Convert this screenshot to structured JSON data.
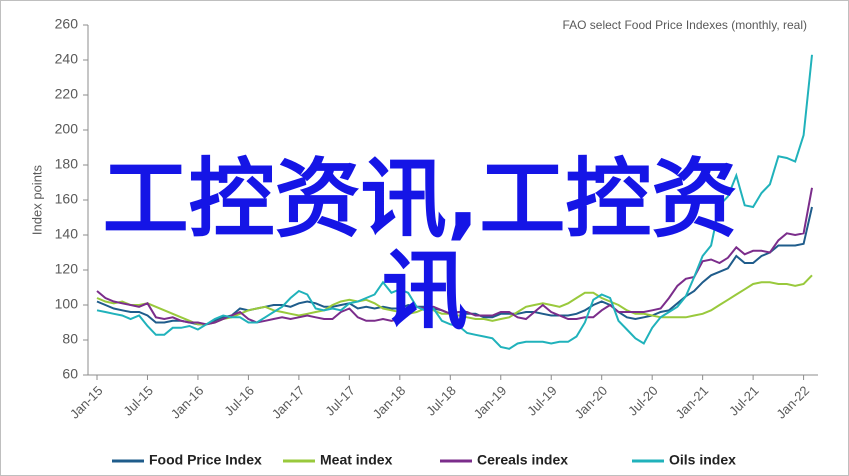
{
  "chart_data": {
    "type": "line",
    "subtitle": "FAO select Food Price Indexes (monthly, real)",
    "y_label": "Index points",
    "annotations": [
      "工控资讯,工控资",
      "讯"
    ],
    "categories": [
      "Jan-15",
      null,
      null,
      null,
      null,
      null,
      "Jul-15",
      null,
      null,
      null,
      null,
      null,
      "Jan-16",
      null,
      null,
      null,
      null,
      null,
      "Jul-16",
      null,
      null,
      null,
      null,
      null,
      "Jan-17",
      null,
      null,
      null,
      null,
      null,
      "Jul-17",
      null,
      null,
      null,
      null,
      null,
      "Jan-18",
      null,
      null,
      null,
      null,
      null,
      "Jul-18",
      null,
      null,
      null,
      null,
      null,
      "Jan-19",
      null,
      null,
      null,
      null,
      null,
      "Jul-19",
      null,
      null,
      null,
      null,
      null,
      "Jan-20",
      null,
      null,
      null,
      null,
      null,
      "Jul-20",
      null,
      null,
      null,
      null,
      null,
      "Jan-21",
      null,
      null,
      null,
      null,
      null,
      "Jul-21",
      null,
      null,
      null,
      null,
      null,
      "Jan-22",
      null
    ],
    "series": [
      {
        "name": "Food Price Index",
        "color": "#1f5c8b",
        "values": [
          102,
          100,
          98,
          97,
          96,
          96,
          94,
          90,
          90,
          91,
          91,
          90,
          89,
          89,
          91,
          93,
          94,
          98,
          97,
          98,
          99,
          100,
          100,
          99,
          101,
          102,
          101,
          99,
          99,
          100,
          101,
          98,
          99,
          98,
          99,
          98,
          98,
          100,
          99,
          99,
          98,
          97,
          95,
          96,
          95,
          95,
          93,
          93,
          95,
          95,
          95,
          96,
          96,
          95,
          94,
          94,
          94,
          95,
          97,
          100,
          102,
          100,
          96,
          93,
          92,
          93,
          94,
          96,
          97,
          101,
          105,
          108,
          113,
          117,
          119,
          121,
          128,
          124,
          124,
          128,
          130,
          134,
          134,
          134,
          135,
          156
        ]
      },
      {
        "name": "Meat index",
        "color": "#99c93c",
        "values": [
          104,
          102,
          101,
          102,
          100,
          100,
          101,
          99,
          97,
          95,
          93,
          91,
          89,
          89,
          90,
          92,
          93,
          95,
          97,
          98,
          99,
          97,
          96,
          95,
          94,
          95,
          96,
          97,
          100,
          102,
          103,
          102,
          103,
          101,
          98,
          97,
          96,
          95,
          96,
          98,
          97,
          95,
          95,
          94,
          93,
          92,
          92,
          91,
          92,
          93,
          96,
          99,
          100,
          101,
          100,
          99,
          101,
          104,
          107,
          107,
          104,
          102,
          100,
          97,
          95,
          95,
          94,
          93,
          93,
          93,
          93,
          94,
          95,
          97,
          100,
          103,
          106,
          109,
          112,
          113,
          113,
          112,
          112,
          111,
          112,
          117
        ]
      },
      {
        "name": "Cereals index",
        "color": "#7b2d8b",
        "values": [
          108,
          104,
          102,
          101,
          100,
          99,
          101,
          93,
          92,
          93,
          91,
          90,
          90,
          89,
          90,
          92,
          94,
          96,
          92,
          90,
          91,
          92,
          93,
          92,
          93,
          94,
          93,
          92,
          92,
          96,
          98,
          93,
          91,
          91,
          92,
          91,
          92,
          96,
          99,
          98,
          99,
          97,
          95,
          96,
          96,
          94,
          94,
          94,
          96,
          96,
          93,
          92,
          96,
          100,
          96,
          94,
          92,
          92,
          93,
          93,
          97,
          100,
          96,
          96,
          96,
          96,
          97,
          98,
          104,
          111,
          115,
          116,
          125,
          126,
          124,
          127,
          133,
          129,
          131,
          131,
          130,
          137,
          141,
          140,
          141,
          167
        ]
      },
      {
        "name": "Oils index",
        "color": "#20b2bb",
        "values": [
          97,
          96,
          95,
          94,
          92,
          94,
          88,
          83,
          83,
          87,
          87,
          88,
          86,
          89,
          92,
          94,
          93,
          93,
          90,
          90,
          93,
          96,
          99,
          104,
          108,
          106,
          98,
          97,
          98,
          97,
          101,
          102,
          104,
          106,
          113,
          107,
          109,
          107,
          99,
          97,
          98,
          91,
          89,
          88,
          84,
          83,
          82,
          81,
          76,
          75,
          78,
          79,
          79,
          79,
          78,
          79,
          79,
          82,
          90,
          103,
          106,
          104,
          91,
          86,
          81,
          78,
          87,
          93,
          96,
          99,
          105,
          116,
          128,
          134,
          157,
          162,
          174,
          157,
          156,
          164,
          169,
          185,
          184,
          182,
          197,
          243
        ]
      }
    ],
    "ylim": [
      60,
      260
    ],
    "yticks": [
      60,
      80,
      100,
      120,
      140,
      160,
      180,
      200,
      220,
      240,
      260
    ],
    "grid": false
  }
}
